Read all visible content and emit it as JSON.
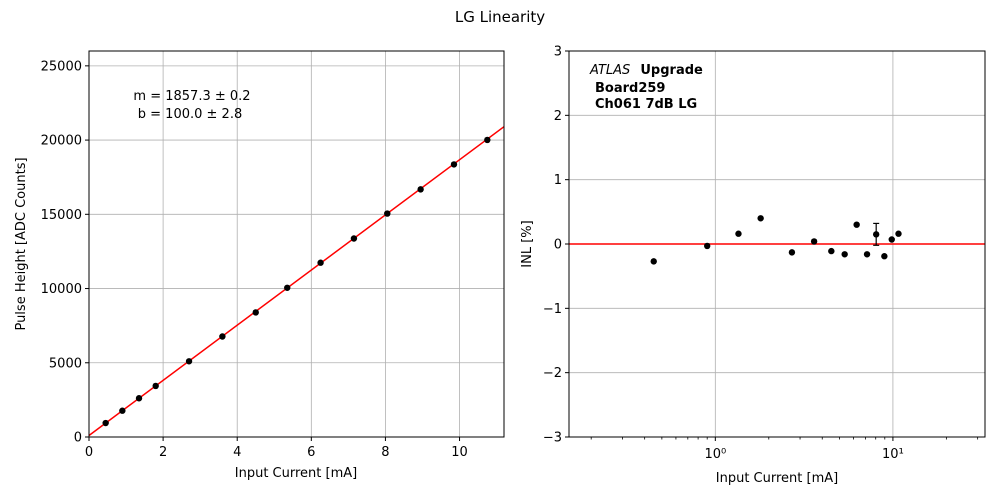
{
  "figure": {
    "title": "LG Linearity"
  },
  "chart_data": [
    {
      "type": "scatter",
      "title": "",
      "xlabel": "Input Current [mA]",
      "ylabel": "Pulse Height [ADC Counts]",
      "xlim": [
        0,
        11.2
      ],
      "ylim": [
        0,
        26000
      ],
      "xscale": "linear",
      "grid": true,
      "x_ticks": [
        0,
        2,
        4,
        6,
        8,
        10
      ],
      "y_ticks": [
        0,
        5000,
        10000,
        15000,
        20000,
        25000
      ],
      "series": [
        {
          "x": [
            0.45,
            0.9,
            1.35,
            1.8,
            2.7,
            3.6,
            4.5,
            5.35,
            6.25,
            7.15,
            8.05,
            8.95,
            9.85,
            10.75
          ],
          "y": [
            940,
            1770,
            2610,
            3440,
            5100,
            6770,
            8390,
            10050,
            11740,
            13370,
            15050,
            16680,
            18360,
            20010
          ],
          "color": "#000000"
        }
      ],
      "fit_line": {
        "slope": 1857.3,
        "intercept": 100.0,
        "color": "#ff0000"
      },
      "annotations": [
        "m = 1857.3 ± 0.2",
        "b = 100.0 ± 2.8"
      ]
    },
    {
      "type": "scatter",
      "title": "",
      "xlabel": "Input Current [mA]",
      "ylabel": "INL [%]",
      "xlim": [
        0.15,
        33
      ],
      "ylim": [
        -3,
        3
      ],
      "xscale": "log",
      "grid": true,
      "x_ticks_major": [
        1,
        10
      ],
      "x_tick_labels": [
        "10⁰",
        "10¹"
      ],
      "y_ticks": [
        -3,
        -2,
        -1,
        0,
        1,
        2,
        3
      ],
      "y_tick_labels": [
        "−3",
        "−2",
        "−1",
        "0",
        "1",
        "2",
        "3"
      ],
      "series": [
        {
          "x": [
            0.45,
            0.9,
            1.35,
            1.8,
            2.7,
            3.6,
            4.5,
            5.35,
            6.25,
            7.15,
            8.05,
            8.95,
            9.85,
            10.75
          ],
          "y": [
            -0.27,
            -0.03,
            0.16,
            0.4,
            -0.13,
            0.04,
            -0.11,
            -0.16,
            0.3,
            -0.16,
            0.15,
            -0.19,
            0.07,
            0.16
          ],
          "yerr": [
            0.02,
            0.02,
            0.02,
            0.02,
            0.02,
            0.02,
            0.02,
            0.02,
            0.02,
            0.02,
            0.17,
            0.02,
            0.02,
            0.02
          ],
          "color": "#000000"
        }
      ],
      "reference_line": {
        "y": 0,
        "color": "#ff0000"
      },
      "annotations": {
        "experiment": "ATLAS",
        "experiment_suffix": "Upgrade",
        "board": "Board259",
        "channel": "Ch061 7dB LG"
      }
    }
  ]
}
